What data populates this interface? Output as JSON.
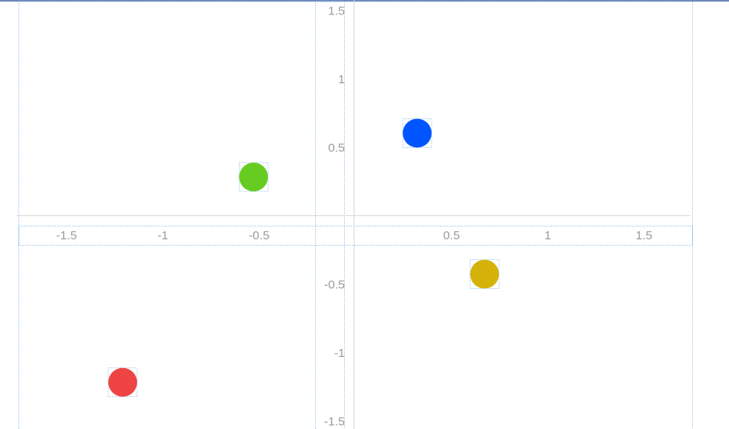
{
  "chart_data": {
    "type": "scatter",
    "title": "",
    "xlabel": "",
    "ylabel": "",
    "xlim": [
      -1.75,
      1.75
    ],
    "ylim": [
      -1.5,
      1.55
    ],
    "grid": false,
    "x_ticks": [
      {
        "value": -1.5,
        "label": "-1.5"
      },
      {
        "value": -1,
        "label": "-1"
      },
      {
        "value": -0.5,
        "label": "-0.5"
      },
      {
        "value": 0.5,
        "label": "0.5"
      },
      {
        "value": 1,
        "label": "1"
      },
      {
        "value": 1.5,
        "label": "1.5"
      }
    ],
    "y_ticks": [
      {
        "value": 1.5,
        "label": "1.5"
      },
      {
        "value": 1,
        "label": "1"
      },
      {
        "value": 0.5,
        "label": "0.5"
      },
      {
        "value": -0.5,
        "label": "-0.5"
      },
      {
        "value": -1,
        "label": "-1"
      },
      {
        "value": -1.5,
        "label": "-1.5"
      }
    ],
    "points": [
      {
        "x": 0.33,
        "y": 0.6,
        "color": "#0055ff"
      },
      {
        "x": -0.52,
        "y": 0.28,
        "color": "#66cc22"
      },
      {
        "x": 0.68,
        "y": -0.43,
        "color": "#d4b20a"
      },
      {
        "x": -1.2,
        "y": -1.22,
        "color": "#ee4444"
      }
    ]
  }
}
